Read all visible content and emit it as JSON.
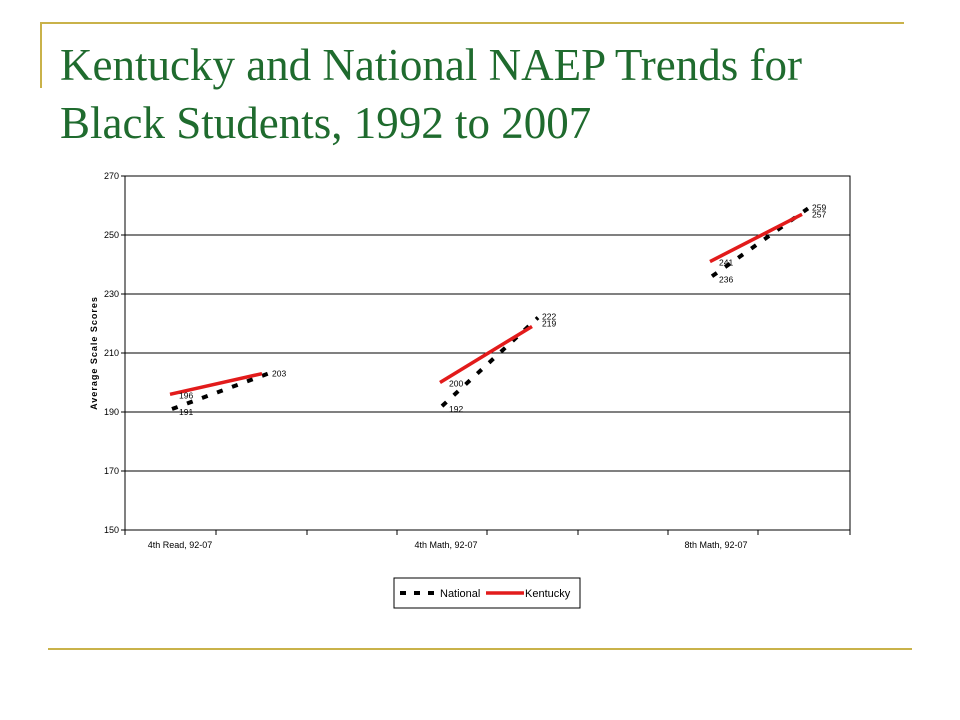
{
  "slide": {
    "title_line1": "Kentucky and National NAEP Trends for",
    "title_line2": "Black Students, 1992 to 2007",
    "accent_color": "#c9b24a",
    "title_color": "#1f6b2e"
  },
  "chart_data": {
    "type": "line",
    "title": "",
    "ylabel": "Average Scale Scores",
    "ylim": [
      150,
      270
    ],
    "yticks": [
      150,
      170,
      190,
      210,
      230,
      250,
      270
    ],
    "grid": true,
    "legend": "bottom",
    "groups": [
      {
        "label": "4th Read, 92-07",
        "national": {
          "start": 191,
          "end": 203,
          "start_label": "191",
          "end_label": ""
        },
        "kentucky": {
          "start": 196,
          "end": 203,
          "start_label": "196",
          "end_label": "203"
        }
      },
      {
        "label": "4th Math, 92-07",
        "national": {
          "start": 192,
          "end": 222,
          "start_label": "192",
          "end_label": "222"
        },
        "kentucky": {
          "start": 200,
          "end": 219,
          "start_label": "200",
          "end_label": "219"
        }
      },
      {
        "label": "8th Math, 92-07",
        "national": {
          "start": 236,
          "end": 259,
          "start_label": "236",
          "end_label": "259"
        },
        "kentucky": {
          "start": 241,
          "end": 257,
          "start_label": "241",
          "end_label": "257"
        }
      }
    ],
    "series": [
      {
        "name": "National",
        "color": "#000000",
        "style": "dashed"
      },
      {
        "name": "Kentucky",
        "color": "#e21b1b",
        "style": "solid"
      }
    ]
  }
}
